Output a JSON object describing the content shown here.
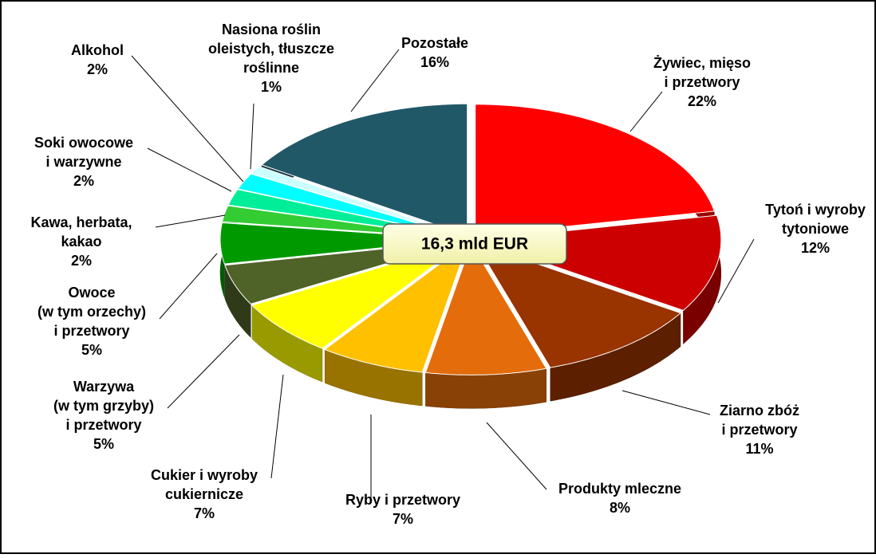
{
  "chart_data": {
    "type": "pie3d",
    "center_label": "16,3 mld EUR",
    "categories": [
      [
        "Żywiec, mięso",
        "i przetwory"
      ],
      [
        "Tytoń i wyroby",
        "tytoniowe"
      ],
      [
        "Ziarno zbóż",
        "i przetwory"
      ],
      [
        "Produkty mleczne"
      ],
      [
        "Ryby i przetwory"
      ],
      [
        "Cukier i wyroby",
        "cukiernicze"
      ],
      [
        "Warzywa",
        "(w tym grzyby)",
        "i przetwory"
      ],
      [
        "Owoce",
        "(w tym orzechy)",
        "i przetwory"
      ],
      [
        "Kawa, herbata,",
        "kakao"
      ],
      [
        "Soki owocowe",
        "i warzywne"
      ],
      [
        "Alkohol"
      ],
      [
        "Nasiona roślin",
        "oleistych, tłuszcze",
        "roślinne"
      ],
      [
        "Pozostałe"
      ]
    ],
    "values": [
      22,
      12,
      11,
      8,
      7,
      7,
      5,
      5,
      2,
      2,
      2,
      1,
      16
    ],
    "value_labels": [
      "22%",
      "12%",
      "11%",
      "8%",
      "7%",
      "7%",
      "5%",
      "5%",
      "2%",
      "2%",
      "2%",
      "1%",
      "16%"
    ],
    "colors": [
      "#ff0000",
      "#cc0000",
      "#993300",
      "#e46c0a",
      "#ffc000",
      "#ffff00",
      "#4f6228",
      "#009900",
      "#33cc33",
      "#00ee99",
      "#00ffff",
      "#ccffff",
      "#215868"
    ]
  }
}
